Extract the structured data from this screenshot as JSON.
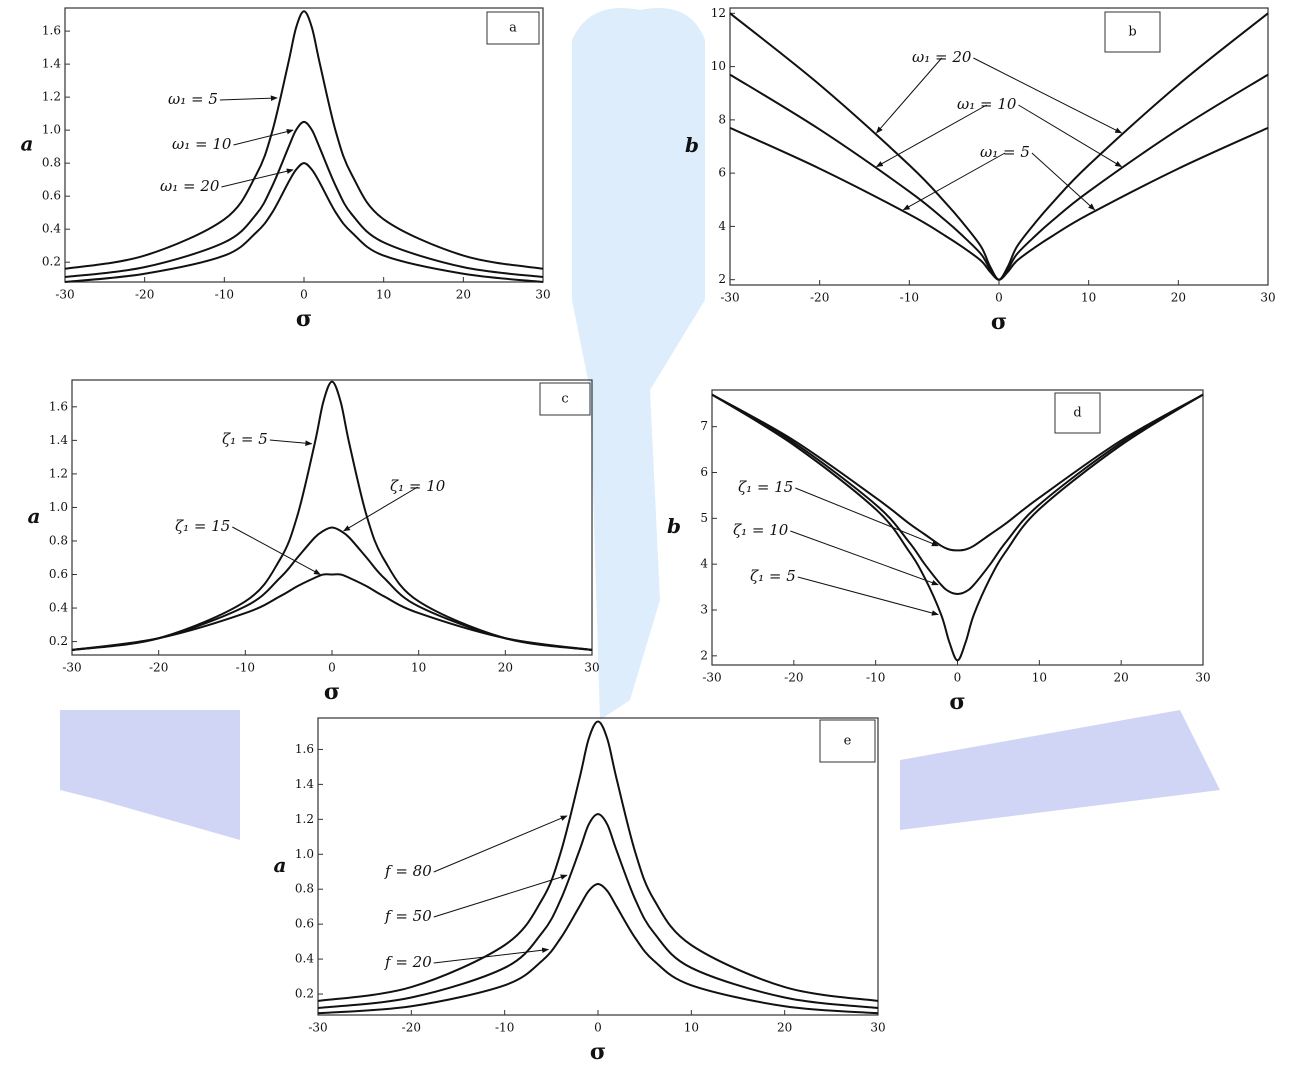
{
  "chart_data": [
    {
      "type": "line",
      "panel": "a",
      "x_label": "σ",
      "y_label": "a",
      "x": [
        -30,
        -20,
        -10,
        -6,
        -4,
        -2,
        -1,
        0,
        1,
        2,
        4,
        6,
        10,
        20,
        30
      ],
      "series": [
        {
          "name": "ω₁ = 5",
          "color": "#111",
          "values": [
            0.16,
            0.24,
            0.46,
            0.73,
            0.99,
            1.4,
            1.62,
            1.72,
            1.62,
            1.4,
            0.99,
            0.73,
            0.46,
            0.24,
            0.16
          ]
        },
        {
          "name": "ω₁ = 10",
          "color": "#111",
          "values": [
            0.11,
            0.17,
            0.32,
            0.49,
            0.66,
            0.89,
            1.0,
            1.05,
            1.0,
            0.89,
            0.66,
            0.49,
            0.32,
            0.17,
            0.11
          ]
        },
        {
          "name": "ω₁ = 20",
          "color": "#111",
          "values": [
            0.08,
            0.13,
            0.24,
            0.38,
            0.5,
            0.68,
            0.76,
            0.8,
            0.76,
            0.68,
            0.5,
            0.38,
            0.24,
            0.13,
            0.08
          ]
        }
      ],
      "xlim": [
        -30,
        30
      ],
      "xticks": [
        -30,
        -20,
        -10,
        0,
        10,
        20,
        30
      ],
      "ylim": [
        0.08,
        1.74
      ],
      "yticks": [
        0.2,
        0.4,
        0.6,
        0.8,
        {
          "value": 1,
          "label": "1.0"
        },
        1.2,
        1.4,
        1.6
      ]
    },
    {
      "type": "line",
      "panel": "b",
      "x_label": "σ",
      "y_label": "b",
      "x": [
        -30,
        -20,
        -10,
        -6,
        -4,
        -2,
        -1,
        0,
        1,
        2,
        4,
        6,
        10,
        20,
        30
      ],
      "series": [
        {
          "name": "ω₁ = 20",
          "color": "#111",
          "values": [
            12.0,
            9.32,
            6.3,
            4.9,
            4.12,
            3.24,
            2.5,
            2.0,
            2.5,
            3.24,
            4.12,
            4.9,
            6.3,
            9.32,
            12.0
          ]
        },
        {
          "name": "ω₁ = 10",
          "color": "#111",
          "values": [
            9.7,
            7.64,
            5.31,
            4.23,
            3.63,
            2.96,
            2.4,
            2.0,
            2.4,
            2.96,
            3.63,
            4.23,
            5.31,
            7.64,
            9.7
          ]
        },
        {
          "name": "ω₁ = 5",
          "color": "#111",
          "values": [
            7.7,
            6.17,
            4.45,
            3.65,
            3.21,
            2.71,
            2.3,
            2.0,
            2.3,
            2.71,
            3.21,
            3.65,
            4.45,
            6.17,
            7.7
          ]
        }
      ],
      "xlim": [
        -30,
        30
      ],
      "xticks": [
        -30,
        -20,
        -10,
        0,
        10,
        20,
        30
      ],
      "ylim": [
        1.8,
        12.2
      ],
      "yticks": [
        2,
        4,
        6,
        8,
        10,
        12
      ]
    },
    {
      "type": "line",
      "panel": "c",
      "x_label": "σ",
      "y_label": "a",
      "x": [
        -30,
        -20,
        -10,
        -6,
        -4,
        -2,
        -1,
        0,
        1,
        2,
        4,
        6,
        10,
        20,
        30
      ],
      "series": [
        {
          "name": "ζ₁ = 5",
          "color": "#111",
          "values": [
            0.15,
            0.22,
            0.44,
            0.69,
            0.95,
            1.38,
            1.63,
            1.75,
            1.63,
            1.38,
            0.95,
            0.69,
            0.44,
            0.22,
            0.15
          ]
        },
        {
          "name": "ζ₁ = 10",
          "color": "#111",
          "values": [
            0.15,
            0.22,
            0.41,
            0.58,
            0.7,
            0.82,
            0.86,
            0.88,
            0.86,
            0.82,
            0.7,
            0.58,
            0.41,
            0.22,
            0.15
          ]
        },
        {
          "name": "ζ₁ = 15",
          "color": "#111",
          "values": [
            0.15,
            0.22,
            0.37,
            0.47,
            0.53,
            0.58,
            0.6,
            0.6,
            0.6,
            0.58,
            0.53,
            0.47,
            0.37,
            0.22,
            0.15
          ]
        }
      ],
      "xlim": [
        -30,
        30
      ],
      "xticks": [
        -30,
        -20,
        -10,
        0,
        10,
        20,
        30
      ],
      "ylim": [
        0.12,
        1.76
      ],
      "yticks": [
        0.2,
        0.4,
        0.6,
        0.8,
        {
          "value": 1,
          "label": "1.0"
        },
        1.2,
        1.4,
        1.6
      ]
    },
    {
      "type": "line",
      "panel": "d",
      "x_label": "σ",
      "y_label": "b",
      "x": [
        -30,
        -20,
        -10,
        -6,
        -4,
        -2,
        -1,
        0,
        1,
        2,
        4,
        6,
        10,
        20,
        30
      ],
      "series": [
        {
          "name": "ζ₁ = 15",
          "color": "#111",
          "values": [
            7.7,
            6.7,
            5.45,
            4.9,
            4.65,
            4.4,
            4.32,
            4.3,
            4.32,
            4.4,
            4.65,
            4.9,
            5.45,
            6.7,
            7.7
          ]
        },
        {
          "name": "ζ₁ = 10",
          "color": "#111",
          "values": [
            7.7,
            6.65,
            5.3,
            4.5,
            4.0,
            3.55,
            3.4,
            3.35,
            3.4,
            3.55,
            4.0,
            4.5,
            5.3,
            6.65,
            7.7
          ]
        },
        {
          "name": "ζ₁ = 5",
          "color": "#111",
          "values": [
            7.7,
            6.6,
            5.2,
            4.3,
            3.7,
            2.9,
            2.3,
            1.9,
            2.3,
            2.9,
            3.7,
            4.3,
            5.2,
            6.6,
            7.7
          ]
        }
      ],
      "xlim": [
        -30,
        30
      ],
      "xticks": [
        -30,
        -20,
        -10,
        0,
        10,
        20,
        30
      ],
      "ylim": [
        1.8,
        7.8
      ],
      "yticks": [
        2,
        3,
        4,
        5,
        6,
        7
      ]
    },
    {
      "type": "line",
      "panel": "e",
      "x_label": "σ",
      "y_label": "a",
      "x": [
        -30,
        -20,
        -10,
        -6,
        -4,
        -2,
        -1,
        0,
        1,
        2,
        4,
        6,
        10,
        20,
        30
      ],
      "series": [
        {
          "name": "f = 80",
          "color": "#111",
          "values": [
            0.16,
            0.24,
            0.48,
            0.74,
            1.01,
            1.43,
            1.66,
            1.76,
            1.66,
            1.43,
            1.01,
            0.74,
            0.48,
            0.24,
            0.16
          ]
        },
        {
          "name": "f = 50",
          "color": "#111",
          "values": [
            0.12,
            0.18,
            0.35,
            0.55,
            0.74,
            1.02,
            1.17,
            1.23,
            1.17,
            1.02,
            0.74,
            0.55,
            0.35,
            0.18,
            0.12
          ]
        },
        {
          "name": "f = 20",
          "color": "#111",
          "values": [
            0.09,
            0.13,
            0.25,
            0.39,
            0.52,
            0.7,
            0.79,
            0.83,
            0.79,
            0.7,
            0.52,
            0.39,
            0.25,
            0.13,
            0.09
          ]
        }
      ],
      "xlim": [
        -30,
        30
      ],
      "xticks": [
        -30,
        -20,
        -10,
        0,
        10,
        20,
        30
      ],
      "ylim": [
        0.08,
        1.78
      ],
      "yticks": [
        0.2,
        0.4,
        0.6,
        0.8,
        {
          "value": 1,
          "label": "1.0"
        },
        1.2,
        1.4,
        1.6
      ]
    }
  ]
}
